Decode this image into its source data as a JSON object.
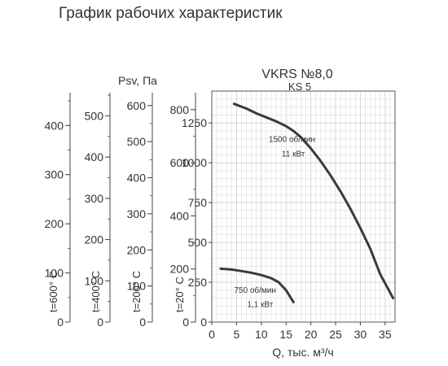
{
  "heading": "График рабочих характеристик",
  "chart_data": {
    "type": "line",
    "title": "VKRS №8,0",
    "subtitle": "KS 5",
    "xlabel": "Q, тыс. м³/ч",
    "ylabel": "Psv, Па",
    "xlim": [
      0,
      37
    ],
    "ylim": [
      0,
      1450
    ],
    "xticks": [
      0,
      5,
      10,
      15,
      20,
      25,
      30,
      35
    ],
    "yticks": [
      0,
      250,
      500,
      750,
      1000,
      1250
    ],
    "grid": true,
    "series": [
      {
        "name": "1500 об/мин",
        "power": "11 кВт",
        "color": "#3a3a3a",
        "x": [
          4.5,
          7,
          9,
          11,
          13,
          15,
          16.5,
          18,
          20,
          22,
          24,
          26,
          28,
          30,
          32,
          34,
          36.6
        ],
        "y": [
          1370,
          1340,
          1310,
          1285,
          1260,
          1230,
          1200,
          1160,
          1090,
          1010,
          920,
          820,
          710,
          590,
          460,
          300,
          150
        ]
      },
      {
        "name": "750 об/мин",
        "power": "1,1 кВт",
        "color": "#3a3a3a",
        "x": [
          1.8,
          4,
          6,
          8,
          10,
          12,
          13.5,
          15,
          16.5
        ],
        "y": [
          335,
          330,
          320,
          310,
          295,
          275,
          250,
          200,
          125
        ]
      }
    ],
    "temperature_scales": [
      {
        "label": "t=20° C",
        "ticks": [
          0,
          200,
          400,
          600,
          800
        ],
        "max": 870
      },
      {
        "label": "t=200° C",
        "ticks": [
          0,
          100,
          200,
          300,
          400,
          500,
          600
        ],
        "max": 640
      },
      {
        "label": "t=400° C",
        "ticks": [
          0,
          100,
          200,
          300,
          400,
          500
        ],
        "max": 560
      },
      {
        "label": "t=600° C",
        "ticks": [
          0,
          100,
          200,
          300,
          400
        ],
        "max": 470
      }
    ]
  }
}
